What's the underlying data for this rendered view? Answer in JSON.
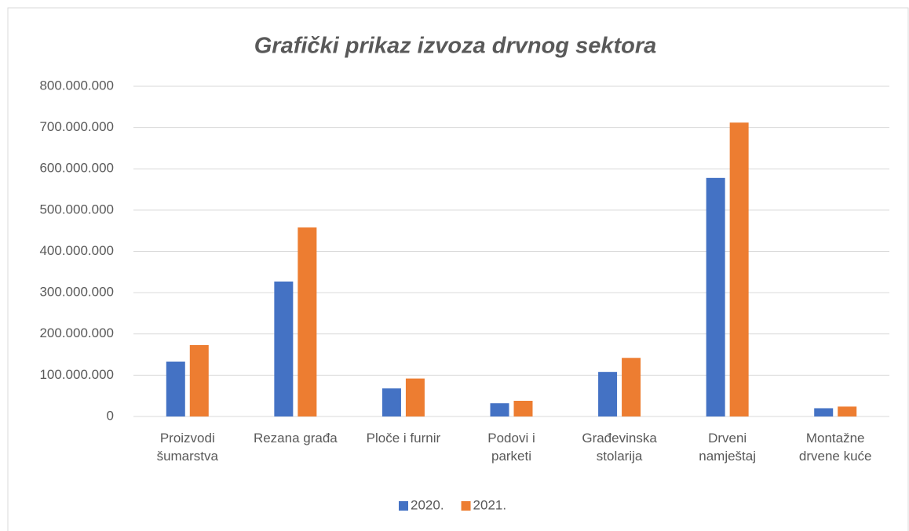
{
  "chart_data": {
    "type": "bar",
    "title": "Grafički prikaz izvoza drvnog sektora",
    "categories": [
      "Proizvodi šumarstva",
      "Rezana građa",
      "Ploče i furnir",
      "Podovi i parketi",
      "Građevinska stolarija",
      "Drveni namještaj",
      "Montažne drvene kuće"
    ],
    "series": [
      {
        "name": "2020.",
        "color": "#4472c4",
        "values": [
          133000000,
          327000000,
          68000000,
          32000000,
          108000000,
          578000000,
          20000000
        ]
      },
      {
        "name": "2021.",
        "color": "#ed7d31",
        "values": [
          173000000,
          458000000,
          92000000,
          38000000,
          142000000,
          712000000,
          24000000
        ]
      }
    ],
    "ylim": [
      0,
      800000000
    ],
    "yticks": [
      0,
      {
        "value": 100000000,
        "label": "100.000.000"
      },
      {
        "value": 200000000,
        "label": "200.000.000"
      },
      {
        "value": 300000000,
        "label": "300.000.000"
      },
      {
        "value": 400000000,
        "label": "400.000.000"
      },
      {
        "value": 500000000,
        "label": "500.000.000"
      },
      {
        "value": 600000000,
        "label": "600.000.000"
      },
      {
        "value": 700000000,
        "label": "700.000.000"
      },
      {
        "value": 800000000,
        "label": "800.000.000"
      }
    ],
    "grid": true,
    "legend": "bottom"
  }
}
